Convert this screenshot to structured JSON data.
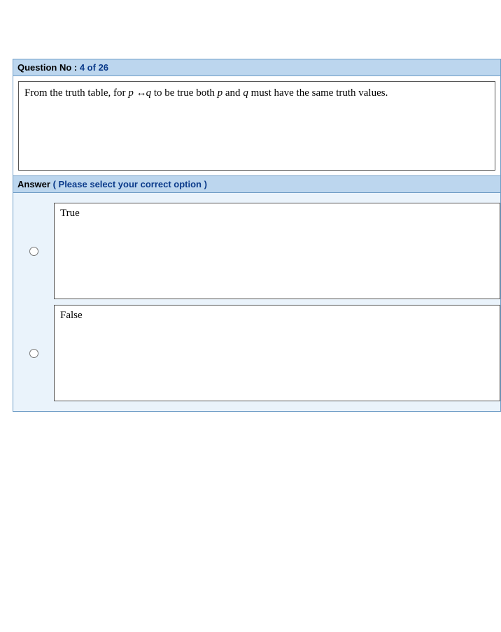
{
  "colors": {
    "header_bg": "#bcd6ee",
    "border": "#6f9dc6",
    "page_bg": "#ffffff",
    "answer_area_bg": "#eaf3fb",
    "counter_text": "#0a3a8a",
    "body_text": "#000000",
    "box_border": "#555555"
  },
  "question_header": {
    "label": "Question No : ",
    "counter": "4 of 26"
  },
  "question": {
    "pre": "From the truth table, for ",
    "var_p": "p",
    "biconditional": "↔",
    "var_q": "q",
    "mid": " to be true both ",
    "var_p2": "p",
    "mid2": " and ",
    "var_q2": "q",
    "post": " must have the same truth values."
  },
  "answer_header": {
    "label": "Answer ",
    "hint": "( Please select your correct option )"
  },
  "options": [
    {
      "label": "True",
      "selected": false
    },
    {
      "label": "False",
      "selected": false
    }
  ]
}
